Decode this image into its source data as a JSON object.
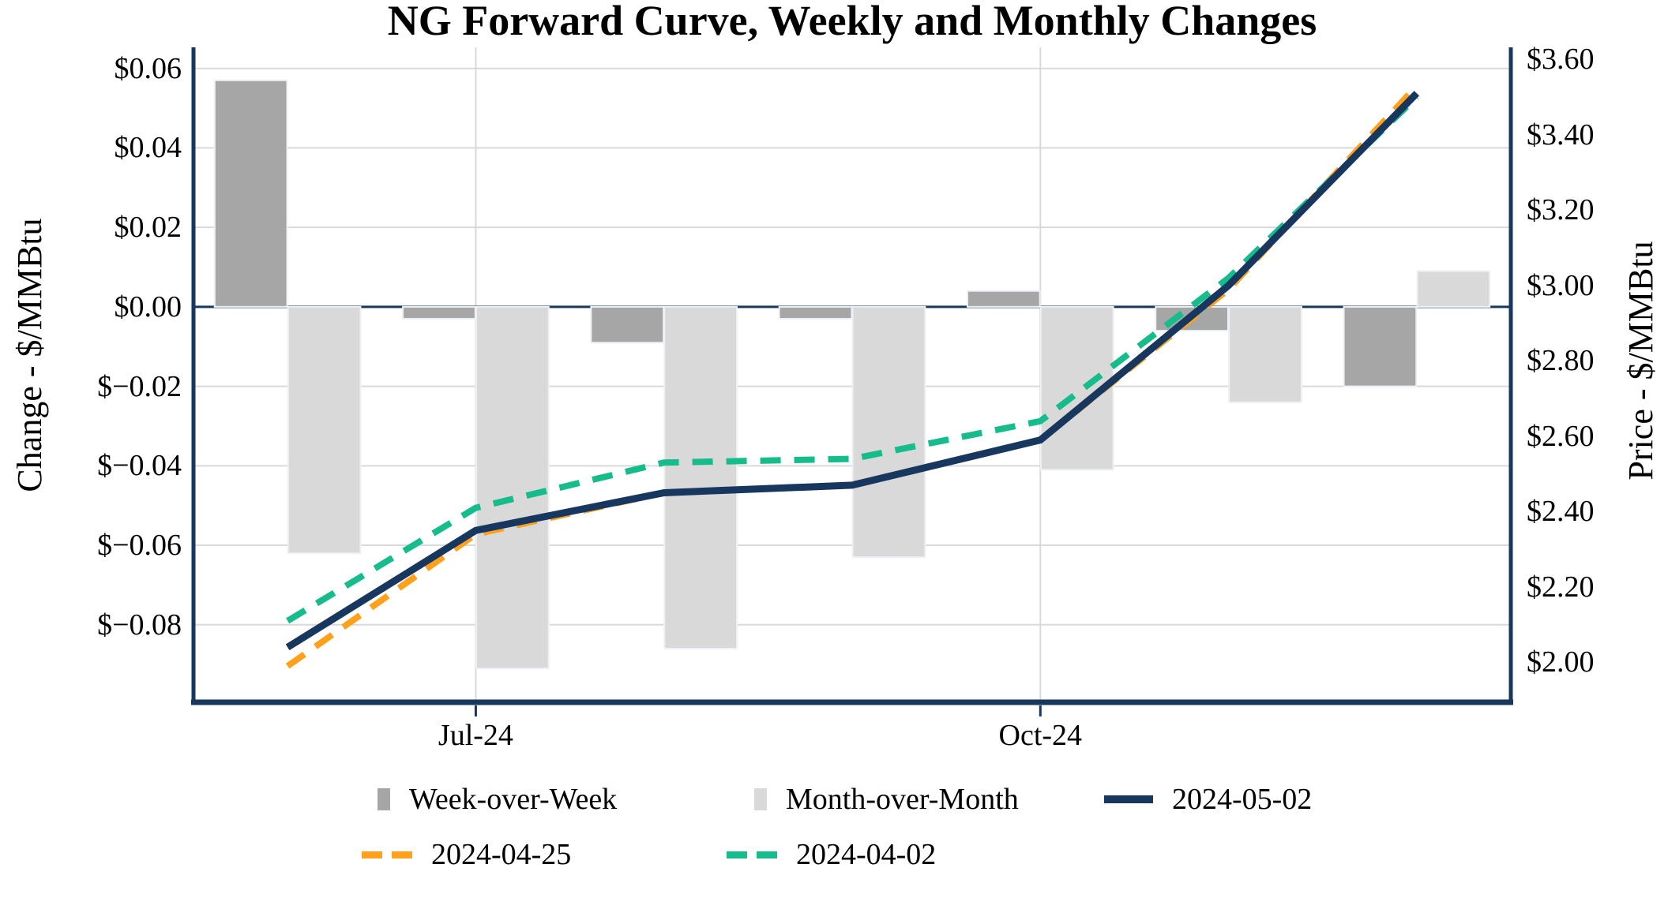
{
  "title": "NG Forward Curve, Weekly and Monthly Changes",
  "axes": {
    "left": {
      "title": "Change - $/MMBtu",
      "ticks": [
        {
          "label": "$0.06",
          "value": 0.06
        },
        {
          "label": "$0.04",
          "value": 0.04
        },
        {
          "label": "$0.02",
          "value": 0.02
        },
        {
          "label": "$0.00",
          "value": 0.0
        },
        {
          "label": "$−0.02",
          "value": -0.02
        },
        {
          "label": "$−0.04",
          "value": -0.04
        },
        {
          "label": "$−0.06",
          "value": -0.06
        },
        {
          "label": "$−0.08",
          "value": -0.08
        }
      ]
    },
    "right": {
      "title": "Price - $/MMBtu",
      "ticks": [
        {
          "label": "$3.60",
          "value": 3.6
        },
        {
          "label": "$3.40",
          "value": 3.4
        },
        {
          "label": "$3.20",
          "value": 3.2
        },
        {
          "label": "$3.00",
          "value": 3.0
        },
        {
          "label": "$2.80",
          "value": 2.8
        },
        {
          "label": "$2.60",
          "value": 2.6
        },
        {
          "label": "$2.40",
          "value": 2.4
        },
        {
          "label": "$2.20",
          "value": 2.2
        },
        {
          "label": "$2.00",
          "value": 2.0
        }
      ]
    },
    "x": {
      "ticks": [
        {
          "label": "Jul-24",
          "category": "Jul-24"
        },
        {
          "label": "Oct-24",
          "category": "Oct-24"
        }
      ]
    }
  },
  "legend": {
    "rows": [
      [
        {
          "label": "Week-over-Week",
          "marker": "square",
          "color": "gray_dark"
        },
        {
          "label": "Month-over-Month",
          "marker": "square",
          "color": "gray_light"
        },
        {
          "label": "2024-05-02",
          "marker": "line",
          "color": "navy"
        }
      ],
      [
        {
          "label": "2024-04-25",
          "marker": "dashes",
          "color": "orange"
        },
        {
          "label": "2024-04-02",
          "marker": "dashes",
          "color": "green"
        }
      ]
    ]
  },
  "colors": {
    "navy": "#17375E",
    "orange": "#FFA11D",
    "green": "#16BC8C",
    "gray_dark": "#A6A6A6",
    "gray_light": "#D9D9D9",
    "gridline": "#D9D9D9",
    "bar_edge": "#EDF0F4",
    "text": "#000000",
    "background": "#FFFFFF"
  },
  "chart_data": {
    "type": "combo_bar_line",
    "categories": [
      "Jun-24",
      "Jul-24",
      "Aug-24",
      "Sep-24",
      "Oct-24",
      "Nov-24",
      "Dec-24"
    ],
    "x_tick_labels_shown": [
      "Jul-24",
      "Oct-24"
    ],
    "bar_series": [
      {
        "name": "Week-over-Week",
        "axis": "left",
        "color": "gray_dark",
        "values": [
          0.057,
          -0.003,
          -0.009,
          -0.003,
          0.004,
          -0.006,
          -0.02
        ]
      },
      {
        "name": "Month-over-Month",
        "axis": "left",
        "color": "gray_light",
        "values": [
          -0.062,
          -0.091,
          -0.086,
          -0.063,
          -0.041,
          -0.024,
          0.009
        ]
      }
    ],
    "line_series": [
      {
        "name": "2024-04-25",
        "axis": "right",
        "color": "orange",
        "dash": true,
        "values": [
          1.99,
          2.34,
          2.45,
          2.47,
          2.59,
          2.99,
          3.53
        ]
      },
      {
        "name": "2024-04-02",
        "axis": "right",
        "color": "green",
        "dash": true,
        "values": [
          2.11,
          2.41,
          2.53,
          2.54,
          2.64,
          3.02,
          3.5
        ]
      },
      {
        "name": "2024-05-02",
        "axis": "right",
        "color": "navy",
        "dash": false,
        "values": [
          2.04,
          2.35,
          2.45,
          2.47,
          2.59,
          3.0,
          3.51
        ]
      }
    ],
    "left_ylim": [
      -0.0995,
      0.0653
    ],
    "right_ylim": [
      1.894,
      3.632
    ],
    "left_tick_step": 0.02,
    "right_tick_step": 0.2,
    "gridlines": true,
    "legend_position": "bottom",
    "units": "$/MMBtu"
  }
}
